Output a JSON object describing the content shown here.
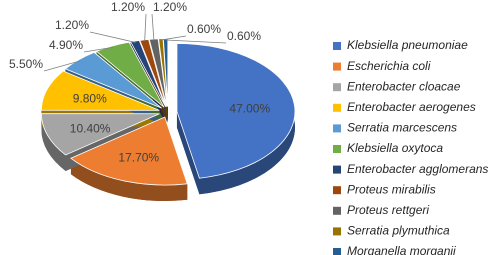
{
  "chart_data": {
    "type": "pie",
    "categories": [
      "Klebsiella pneumoniae",
      "Escherichia coli",
      "Enterobacter cloacae",
      "Enterobacter aerogenes",
      "Serratia marcescens",
      "Klebsiella oxytoca",
      "Enterobacter agglomerans",
      "Proteus mirabilis",
      "Proteus rettgeri",
      "Serratia plymuthica",
      "Morganella morganii"
    ],
    "values": [
      47.0,
      17.7,
      10.4,
      9.8,
      5.5,
      4.9,
      1.2,
      1.2,
      1.2,
      0.6,
      0.6
    ],
    "value_labels": [
      "47.00%",
      "17.70%",
      "10.40%",
      "9.80%",
      "5.50%",
      "4.90%",
      "1.20%",
      "1.20%",
      "1.20%",
      "0.60%",
      "0.60%"
    ],
    "colors": [
      "#4472c4",
      "#ed7d31",
      "#a5a5a5",
      "#ffc000",
      "#5b9bd5",
      "#70ad47",
      "#264478",
      "#9e480e",
      "#636363",
      "#997300",
      "#255e91"
    ],
    "legend": "right"
  }
}
